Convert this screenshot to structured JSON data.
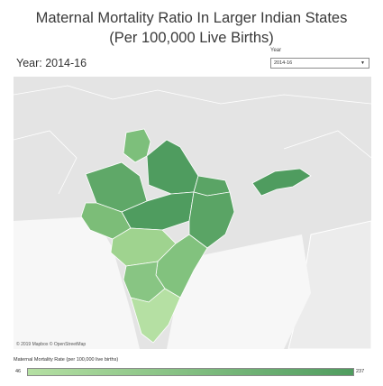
{
  "title": {
    "line1": "Maternal Mortality Ratio In Larger Indian States",
    "line2": "(Per 100,000 Live Births)"
  },
  "year_label": "Year: 2014-16",
  "filter": {
    "caption": "Year",
    "selected": "2014-16",
    "arrow": "▼"
  },
  "credit": "© 2019 Mapbox © OpenStreetMap",
  "legend": {
    "title": "Maternal Mortality Rate (per 100,000 live births)",
    "min": "46",
    "max": "237",
    "color_min": "#b5e0a3",
    "color_max": "#4f9c5f"
  },
  "colors": {
    "background_land": "#e5e5e5",
    "borders": "#ffffff",
    "state_outline": "#3f7a4c"
  }
}
